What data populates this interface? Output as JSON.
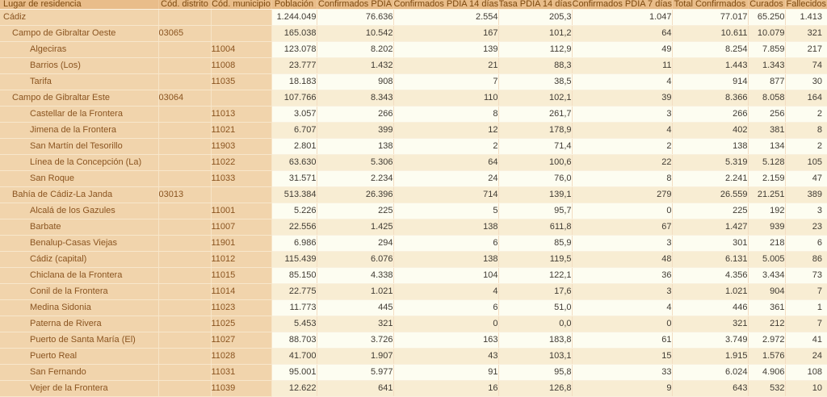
{
  "colors": {
    "header_bg": "#e9bd8a",
    "header_text": "#7c480e",
    "dimension_bg": "#f1d4ac",
    "dimension_text": "#8a5420",
    "row_light_bg": "#fdfdf1",
    "row_shade_bg": "#f8edd3",
    "number_text": "#403b33",
    "gridline": "#f3ddc2"
  },
  "chart_data": {
    "type": "table",
    "title": "",
    "columns": [
      "Lugar de residencia",
      "Cód. distrito",
      "Cód. municipio",
      "Población",
      "Confirmados PDIA",
      "Confirmados PDIA 14 días",
      "Tasa PDIA 14 días",
      "Confirmados PDIA 7 días",
      "Total Confirmados",
      "Curados",
      "Fallecidos"
    ],
    "value_columns": [
      "Población",
      "Confirmados PDIA",
      "Confirmados PDIA 14 días",
      "Tasa PDIA 14 días",
      "Confirmados PDIA 7 días",
      "Total Confirmados",
      "Curados",
      "Fallecidos"
    ],
    "rows": [
      {
        "lugar": "Cádiz",
        "indent": 0,
        "distrito": "",
        "municipio": "",
        "values": [
          "1.244.049",
          "76.636",
          "2.554",
          "205,3",
          "1.047",
          "77.017",
          "65.250",
          "1.413"
        ]
      },
      {
        "lugar": "Campo de Gibraltar Oeste",
        "indent": 1,
        "distrito": "03065",
        "municipio": "",
        "values": [
          "165.038",
          "10.542",
          "167",
          "101,2",
          "64",
          "10.611",
          "10.079",
          "321"
        ]
      },
      {
        "lugar": "Algeciras",
        "indent": 2,
        "distrito": "",
        "municipio": "11004",
        "values": [
          "123.078",
          "8.202",
          "139",
          "112,9",
          "49",
          "8.254",
          "7.859",
          "217"
        ]
      },
      {
        "lugar": "Barrios (Los)",
        "indent": 2,
        "distrito": "",
        "municipio": "11008",
        "values": [
          "23.777",
          "1.432",
          "21",
          "88,3",
          "11",
          "1.443",
          "1.343",
          "74"
        ]
      },
      {
        "lugar": "Tarifa",
        "indent": 2,
        "distrito": "",
        "municipio": "11035",
        "values": [
          "18.183",
          "908",
          "7",
          "38,5",
          "4",
          "914",
          "877",
          "30"
        ]
      },
      {
        "lugar": "Campo de Gibraltar Este",
        "indent": 1,
        "distrito": "03064",
        "municipio": "",
        "values": [
          "107.766",
          "8.343",
          "110",
          "102,1",
          "39",
          "8.366",
          "8.058",
          "164"
        ]
      },
      {
        "lugar": "Castellar de la Frontera",
        "indent": 2,
        "distrito": "",
        "municipio": "11013",
        "values": [
          "3.057",
          "266",
          "8",
          "261,7",
          "3",
          "266",
          "256",
          "2"
        ]
      },
      {
        "lugar": "Jimena de la Frontera",
        "indent": 2,
        "distrito": "",
        "municipio": "11021",
        "values": [
          "6.707",
          "399",
          "12",
          "178,9",
          "4",
          "402",
          "381",
          "8"
        ]
      },
      {
        "lugar": "San Martín del Tesorillo",
        "indent": 2,
        "distrito": "",
        "municipio": "11903",
        "values": [
          "2.801",
          "138",
          "2",
          "71,4",
          "2",
          "138",
          "134",
          "2"
        ]
      },
      {
        "lugar": "Línea de la Concepción (La)",
        "indent": 2,
        "distrito": "",
        "municipio": "11022",
        "values": [
          "63.630",
          "5.306",
          "64",
          "100,6",
          "22",
          "5.319",
          "5.128",
          "105"
        ]
      },
      {
        "lugar": "San Roque",
        "indent": 2,
        "distrito": "",
        "municipio": "11033",
        "values": [
          "31.571",
          "2.234",
          "24",
          "76,0",
          "8",
          "2.241",
          "2.159",
          "47"
        ]
      },
      {
        "lugar": "Bahía de Cádiz-La Janda",
        "indent": 1,
        "distrito": "03013",
        "municipio": "",
        "values": [
          "513.384",
          "26.396",
          "714",
          "139,1",
          "279",
          "26.559",
          "21.251",
          "389"
        ]
      },
      {
        "lugar": "Alcalá de los Gazules",
        "indent": 2,
        "distrito": "",
        "municipio": "11001",
        "values": [
          "5.226",
          "225",
          "5",
          "95,7",
          "0",
          "225",
          "192",
          "3"
        ]
      },
      {
        "lugar": "Barbate",
        "indent": 2,
        "distrito": "",
        "municipio": "11007",
        "values": [
          "22.556",
          "1.425",
          "138",
          "611,8",
          "67",
          "1.427",
          "939",
          "23"
        ]
      },
      {
        "lugar": "Benalup-Casas Viejas",
        "indent": 2,
        "distrito": "",
        "municipio": "11901",
        "values": [
          "6.986",
          "294",
          "6",
          "85,9",
          "3",
          "301",
          "218",
          "6"
        ]
      },
      {
        "lugar": "Cádiz (capital)",
        "indent": 2,
        "distrito": "",
        "municipio": "11012",
        "values": [
          "115.439",
          "6.076",
          "138",
          "119,5",
          "48",
          "6.131",
          "5.005",
          "86"
        ]
      },
      {
        "lugar": "Chiclana de la Frontera",
        "indent": 2,
        "distrito": "",
        "municipio": "11015",
        "values": [
          "85.150",
          "4.338",
          "104",
          "122,1",
          "36",
          "4.356",
          "3.434",
          "73"
        ]
      },
      {
        "lugar": "Conil de la Frontera",
        "indent": 2,
        "distrito": "",
        "municipio": "11014",
        "values": [
          "22.775",
          "1.021",
          "4",
          "17,6",
          "3",
          "1.021",
          "904",
          "7"
        ]
      },
      {
        "lugar": "Medina Sidonia",
        "indent": 2,
        "distrito": "",
        "municipio": "11023",
        "values": [
          "11.773",
          "445",
          "6",
          "51,0",
          "4",
          "446",
          "361",
          "1"
        ]
      },
      {
        "lugar": "Paterna de Rivera",
        "indent": 2,
        "distrito": "",
        "municipio": "11025",
        "values": [
          "5.453",
          "321",
          "0",
          "0,0",
          "0",
          "321",
          "212",
          "7"
        ]
      },
      {
        "lugar": "Puerto de Santa María (El)",
        "indent": 2,
        "distrito": "",
        "municipio": "11027",
        "values": [
          "88.703",
          "3.726",
          "163",
          "183,8",
          "61",
          "3.749",
          "2.972",
          "41"
        ]
      },
      {
        "lugar": "Puerto Real",
        "indent": 2,
        "distrito": "",
        "municipio": "11028",
        "values": [
          "41.700",
          "1.907",
          "43",
          "103,1",
          "15",
          "1.915",
          "1.576",
          "24"
        ]
      },
      {
        "lugar": "San Fernando",
        "indent": 2,
        "distrito": "",
        "municipio": "11031",
        "values": [
          "95.001",
          "5.977",
          "91",
          "95,8",
          "33",
          "6.024",
          "4.906",
          "108"
        ]
      },
      {
        "lugar": "Vejer de la Frontera",
        "indent": 2,
        "distrito": "",
        "municipio": "11039",
        "values": [
          "12.622",
          "641",
          "16",
          "126,8",
          "9",
          "643",
          "532",
          "10"
        ]
      }
    ]
  }
}
